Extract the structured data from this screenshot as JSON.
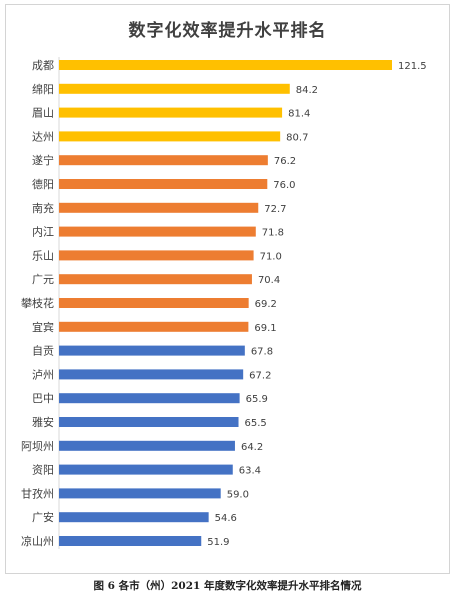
{
  "chart_data": {
    "type": "bar",
    "orientation": "horizontal",
    "title": "数字化效率提升水平排名",
    "caption": "图 6 各市（州）2021 年度数字化效率提升水平排名情况",
    "categories": [
      "成都",
      "绵阳",
      "眉山",
      "达州",
      "遂宁",
      "德阳",
      "南充",
      "内江",
      "乐山",
      "广元",
      "攀枝花",
      "宜宾",
      "自贡",
      "泸州",
      "巴中",
      "雅安",
      "阿坝州",
      "资阳",
      "甘孜州",
      "广安",
      "凉山州"
    ],
    "values": [
      121.5,
      84.2,
      81.4,
      80.7,
      76.2,
      76.0,
      72.7,
      71.8,
      71.0,
      70.4,
      69.2,
      69.1,
      67.8,
      67.2,
      65.9,
      65.5,
      64.2,
      63.4,
      59.0,
      54.6,
      51.9
    ],
    "value_labels": [
      "121.5",
      "84.2",
      "81.4",
      "80.7",
      "76.2",
      "76.0",
      "72.7",
      "71.8",
      "71.0",
      "70.4",
      "69.2",
      "69.1",
      "67.8",
      "67.2",
      "65.9",
      "65.5",
      "64.2",
      "63.4",
      "59.0",
      "54.6",
      "51.9"
    ],
    "bar_colors": [
      "#FFC000",
      "#FFC000",
      "#FFC000",
      "#FFC000",
      "#ED7D31",
      "#ED7D31",
      "#ED7D31",
      "#ED7D31",
      "#ED7D31",
      "#ED7D31",
      "#ED7D31",
      "#ED7D31",
      "#4472C4",
      "#4472C4",
      "#4472C4",
      "#4472C4",
      "#4472C4",
      "#4472C4",
      "#4472C4",
      "#4472C4",
      "#4472C4"
    ],
    "xlim": [
      0,
      121.5
    ],
    "grid": false,
    "legend": "none"
  },
  "colors": {
    "tier_high": "#FFC000",
    "tier_mid": "#ED7D31",
    "tier_low": "#4472C4"
  }
}
